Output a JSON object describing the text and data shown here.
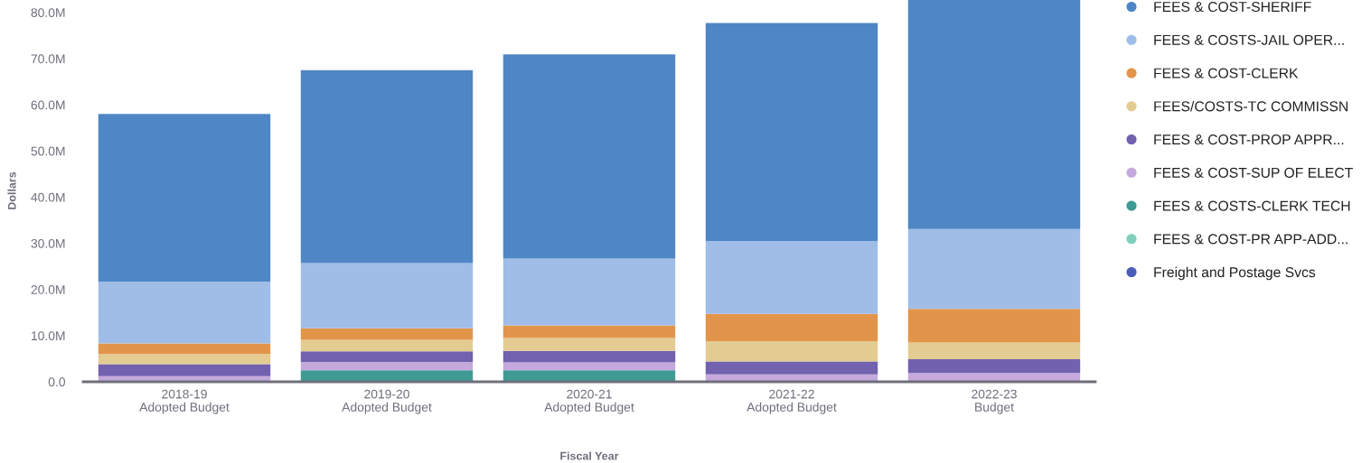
{
  "chart_data": {
    "type": "bar",
    "stacked": true,
    "xlabel": "Fiscal Year",
    "ylabel": "Dollars",
    "categories": [
      "2018-19\nAdopted Budget",
      "2019-20\nAdopted Budget",
      "2020-21\nAdopted Budget",
      "2021-22\nAdopted Budget",
      "2022-23\nBudget"
    ],
    "series": [
      {
        "name": "Freight and Postage Svcs",
        "color": "#4a5db7",
        "values": [
          null,
          null,
          null,
          null,
          null
        ]
      },
      {
        "name": "FEES & COST-PR APP-ADD...",
        "color": "#80d0bb",
        "values": [
          null,
          null,
          null,
          null,
          null
        ]
      },
      {
        "name": "FEES & COSTS-CLERK TECH",
        "color": "#3f9a93",
        "values": [
          null,
          2.5,
          2.5,
          null,
          null
        ]
      },
      {
        "name": "FEES & COST-SUP OF ELECT",
        "color": "#c6a9dc",
        "values": [
          1.2,
          1.8,
          1.7,
          1.6,
          1.9
        ]
      },
      {
        "name": "FEES & COST-PROP APPR...",
        "color": "#7161ae",
        "values": [
          2.6,
          2.3,
          2.5,
          2.8,
          3.0
        ]
      },
      {
        "name": "FEES/COSTS-TC COMMISSN",
        "color": "#e3cb92",
        "values": [
          2.2,
          2.5,
          2.8,
          4.4,
          3.6
        ]
      },
      {
        "name": "FEES & COST-CLERK",
        "color": "#e2954a",
        "values": [
          2.3,
          2.5,
          2.7,
          5.9,
          7.3
        ]
      },
      {
        "name": "FEES & COSTS-JAIL OPER...",
        "color": "#a0bde8",
        "values": [
          13.4,
          14.1,
          14.5,
          15.8,
          17.3
        ]
      },
      {
        "name": "FEES & COST-SHERIFF",
        "color": "#4f86c6",
        "values": [
          36.3,
          41.8,
          44.2,
          47.2,
          49.6
        ]
      }
    ],
    "ylim": [
      0,
      82.7
    ],
    "yticks": [
      {
        "value": 0,
        "label": "0.0"
      },
      {
        "value": 10,
        "label": "10.0M"
      },
      {
        "value": 20,
        "label": "20.0M"
      },
      {
        "value": 30,
        "label": "30.0M"
      },
      {
        "value": 40,
        "label": "40.0M"
      },
      {
        "value": 50,
        "label": "50.0M"
      },
      {
        "value": 60,
        "label": "60.0M"
      },
      {
        "value": 70,
        "label": "70.0M"
      },
      {
        "value": 80,
        "label": "80.0M"
      }
    ],
    "grid": false,
    "legend": "top right"
  }
}
